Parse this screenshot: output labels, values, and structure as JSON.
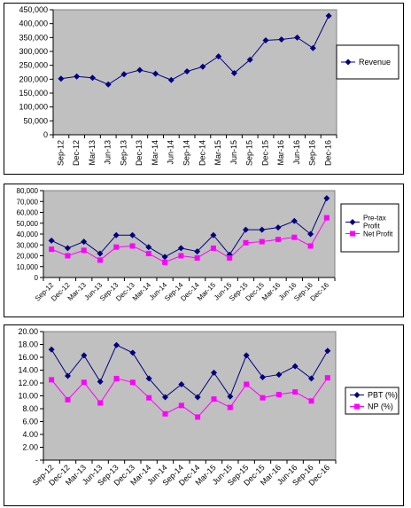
{
  "chart_data": [
    {
      "type": "line",
      "categories": [
        "Sep-12",
        "Dec-12",
        "Mar-13",
        "Jun-13",
        "Sep-13",
        "Dec-13",
        "Mar-14",
        "Jun-14",
        "Sep-14",
        "Dec-14",
        "Mar-15",
        "Jun-15",
        "Sep-15",
        "Dec-15",
        "Mar-16",
        "Jun-16",
        "Sep-16",
        "Dec-16"
      ],
      "series": [
        {
          "name": "Revenue",
          "color": "#000080",
          "marker": "diamond",
          "values": [
            202000,
            210000,
            205000,
            181000,
            218000,
            233000,
            220000,
            197000,
            228000,
            245000,
            282000,
            222000,
            270000,
            340000,
            343000,
            350000,
            312000,
            428000
          ]
        }
      ],
      "yticks": [
        "0",
        "50,000",
        "100,000",
        "150,000",
        "200,000",
        "250,000",
        "300,000",
        "350,000",
        "400,000",
        "450,000"
      ],
      "ylim": [
        0,
        450000
      ],
      "grid": false,
      "legend": "right",
      "plot_bg": "#c0c0c0"
    },
    {
      "type": "line",
      "categories": [
        "Sep-12",
        "Dec-12",
        "Mar-13",
        "Jun-13",
        "Sep-13",
        "Dec-13",
        "Mar-14",
        "Jun-14",
        "Sep-14",
        "Dec-14",
        "Mar-15",
        "Jun-15",
        "Sep-15",
        "Dec-15",
        "Mar-16",
        "Jun-16",
        "Sep-16",
        "Dec-16"
      ],
      "series": [
        {
          "name": "Pre-tax Profit",
          "color": "#000080",
          "marker": "diamond",
          "values": [
            34000,
            27000,
            33000,
            22000,
            39000,
            39000,
            28000,
            19000,
            27000,
            24000,
            39000,
            21000,
            44000,
            44000,
            46000,
            52000,
            40000,
            73000
          ]
        },
        {
          "name": "Net Profit",
          "color": "#ff00ff",
          "marker": "square",
          "values": [
            26000,
            20000,
            25000,
            16000,
            28000,
            29000,
            22000,
            14000,
            20000,
            18000,
            27000,
            18000,
            32000,
            33000,
            35000,
            37000,
            29000,
            55000
          ]
        }
      ],
      "yticks": [
        "0",
        "10,000",
        "20,000",
        "30,000",
        "40,000",
        "50,000",
        "60,000",
        "70,000",
        "80,000"
      ],
      "ylim": [
        0,
        80000
      ],
      "grid": false,
      "legend": "right",
      "plot_bg": "#c0c0c0"
    },
    {
      "type": "line",
      "categories": [
        "Sep-12",
        "Dec-12",
        "Mar-13",
        "Jun-13",
        "Sep-13",
        "Dec-13",
        "Mar-14",
        "Jun-14",
        "Sep-14",
        "Dec-14",
        "Mar-15",
        "Jun-15",
        "Sep-15",
        "Dec-15",
        "Mar-16",
        "Jun-16",
        "Sep-16",
        "Dec-16"
      ],
      "series": [
        {
          "name": "PBT (%)",
          "color": "#000080",
          "marker": "diamond",
          "values": [
            17.2,
            13.1,
            16.3,
            12.2,
            17.9,
            16.7,
            12.7,
            9.8,
            11.8,
            9.8,
            13.6,
            9.9,
            16.3,
            12.9,
            13.3,
            14.6,
            12.7,
            17.0
          ]
        },
        {
          "name": "NP (%)",
          "color": "#ff00ff",
          "marker": "square",
          "values": [
            12.5,
            9.4,
            12.1,
            8.9,
            12.7,
            12.1,
            9.7,
            7.2,
            8.5,
            6.7,
            9.5,
            8.2,
            11.8,
            9.7,
            10.2,
            10.6,
            9.2,
            12.8
          ]
        }
      ],
      "yticks": [
        "-",
        "2.00",
        "4.00",
        "6.00",
        "8.00",
        "10.00",
        "12.00",
        "14.00",
        "16.00",
        "18.00",
        "20.00"
      ],
      "ylim": [
        0,
        20
      ],
      "grid": false,
      "legend": "right",
      "plot_bg": "#c0c0c0"
    }
  ]
}
